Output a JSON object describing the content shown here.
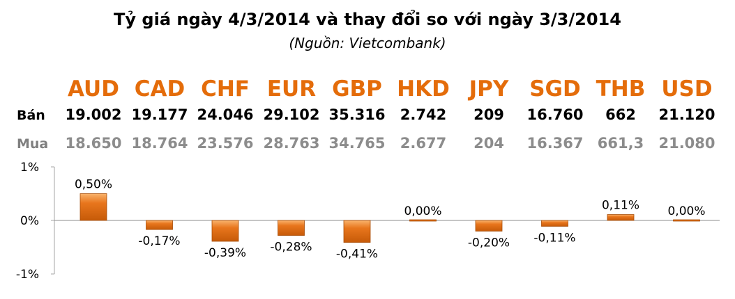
{
  "title": "Tỷ giá ngày 4/3/2014 và thay đổi so với ngày 3/3/2014",
  "subtitle": "(Nguồn: Vietcombank)",
  "table": {
    "sell_label": "Bán",
    "buy_label": "Mua",
    "currencies": [
      "AUD",
      "CAD",
      "CHF",
      "EUR",
      "GBP",
      "HKD",
      "JPY",
      "SGD",
      "THB",
      "USD"
    ],
    "sell": [
      "19.002",
      "19.177",
      "24.046",
      "29.102",
      "35.316",
      "2.742",
      "209",
      "16.760",
      "662",
      "21.120"
    ],
    "buy": [
      "18.650",
      "18.764",
      "23.576",
      "28.763",
      "34.765",
      "2.677",
      "204",
      "16.367",
      "661,3",
      "21.080"
    ]
  },
  "colors": {
    "accent": "#e46c0a",
    "bar": "#d4650c",
    "bar_light": "#f7a35c",
    "axis": "#a6a6a6"
  },
  "chart_data": {
    "type": "bar",
    "categories": [
      "AUD",
      "CAD",
      "CHF",
      "EUR",
      "GBP",
      "HKD",
      "JPY",
      "SGD",
      "THB",
      "USD"
    ],
    "values": [
      0.5,
      -0.17,
      -0.39,
      -0.28,
      -0.41,
      0.0,
      -0.2,
      -0.11,
      0.11,
      0.0
    ],
    "data_labels": [
      "0,50%",
      "-0,17%",
      "-0,39%",
      "-0,28%",
      "-0,41%",
      "0,00%",
      "-0,20%",
      "-0,11%",
      "0,11%",
      "0,00%"
    ],
    "yticks": [
      "1%",
      "0%",
      "-1%"
    ],
    "ylim": [
      -1,
      1
    ],
    "grid": false
  }
}
